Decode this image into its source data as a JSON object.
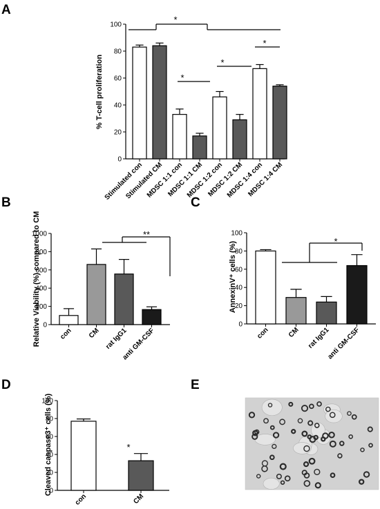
{
  "chart_data": [
    {
      "panel": "A",
      "type": "bar",
      "ylabel": "% T-cell proliferation",
      "ylim": [
        0,
        100
      ],
      "yticks": [
        "0",
        "20",
        "40",
        "60",
        "80",
        "100"
      ],
      "categories": [
        "Stimulated con",
        "Stimulated CM",
        "MDSC 1:1 con",
        "MDSC 1:1 CM",
        "MDSC 1:2 con",
        "MDSC 1:2 CM",
        "MDSC 1:4 con",
        "MDSC 1:4 CM"
      ],
      "values": [
        83,
        84,
        33,
        17,
        46,
        29,
        67,
        54
      ],
      "errors": [
        1.5,
        2,
        4,
        2,
        4,
        4,
        3,
        1
      ],
      "fills": [
        "#ffffff",
        "#595959",
        "#ffffff",
        "#595959",
        "#ffffff",
        "#595959",
        "#ffffff",
        "#595959"
      ],
      "significance": [
        "*",
        "*",
        "*",
        "*"
      ]
    },
    {
      "panel": "B",
      "type": "bar",
      "ylabel": "Relative Viability (%) compared to CM",
      "ylim": [
        0,
        1000
      ],
      "yticks": [
        "0",
        "200",
        "400",
        "600",
        "800",
        "1000"
      ],
      "categories": [
        "con",
        "CM",
        "rat IgG1",
        "anti GM-CSF"
      ],
      "values": [
        100,
        660,
        555,
        165
      ],
      "errors": [
        75,
        170,
        160,
        30
      ],
      "fills": [
        "#ffffff",
        "#999999",
        "#595959",
        "#1a1a1a"
      ],
      "significance": [
        "**"
      ]
    },
    {
      "panel": "C",
      "type": "bar",
      "ylabel": "AnnexinV⁺ cells (%)",
      "ylim": [
        0,
        100
      ],
      "yticks": [
        "0",
        "20",
        "40",
        "60",
        "80",
        "100"
      ],
      "categories": [
        "con",
        "CM",
        "rat IgG1",
        "anti GM-CSF"
      ],
      "values": [
        80,
        29,
        24,
        64
      ],
      "errors": [
        1.5,
        9,
        6,
        12
      ],
      "fills": [
        "#ffffff",
        "#999999",
        "#595959",
        "#1a1a1a"
      ],
      "significance": [
        "*"
      ]
    },
    {
      "panel": "D",
      "type": "bar",
      "ylabel": "Cleaved caspase3⁺ cells (%)",
      "ylim": [
        0,
        100
      ],
      "yticks": [
        "0",
        "20",
        "40",
        "60",
        "80",
        "100"
      ],
      "categories": [
        "con",
        "CM"
      ],
      "values": [
        77,
        33
      ],
      "errors": [
        2.5,
        8
      ],
      "fills": [
        "#ffffff",
        "#595959"
      ],
      "significance": [
        "*"
      ]
    }
  ],
  "panel_labels": [
    "A",
    "B",
    "C",
    "D",
    "E"
  ]
}
